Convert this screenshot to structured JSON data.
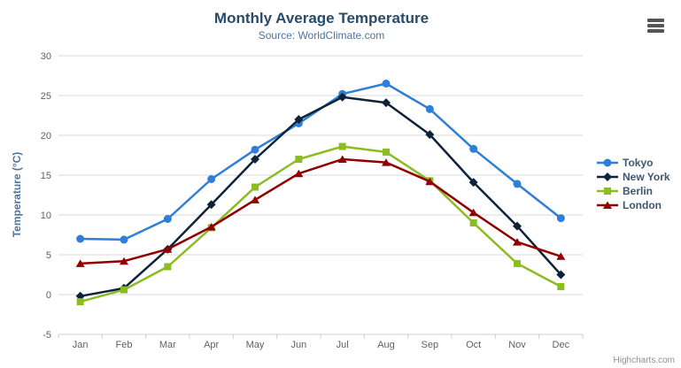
{
  "chart_data": {
    "type": "line",
    "title": "Monthly Average Temperature",
    "subtitle": "Source: WorldClimate.com",
    "xlabel": "",
    "ylabel": "Temperature (°C)",
    "ylim": [
      -5,
      30
    ],
    "yticks": [
      30,
      25,
      20,
      15,
      10,
      5,
      0,
      -5
    ],
    "grid": true,
    "legend_position": "right",
    "categories": [
      "Jan",
      "Feb",
      "Mar",
      "Apr",
      "May",
      "Jun",
      "Jul",
      "Aug",
      "Sep",
      "Oct",
      "Nov",
      "Dec"
    ],
    "series": [
      {
        "name": "Tokyo",
        "color": "#2f7ed8",
        "marker": "circle",
        "values": [
          7.0,
          6.9,
          9.5,
          14.5,
          18.2,
          21.5,
          25.2,
          26.5,
          23.3,
          18.3,
          13.9,
          9.6
        ]
      },
      {
        "name": "New York",
        "color": "#0d233a",
        "marker": "diamond",
        "values": [
          -0.2,
          0.8,
          5.7,
          11.3,
          17.0,
          22.0,
          24.8,
          24.1,
          20.1,
          14.1,
          8.6,
          2.5
        ]
      },
      {
        "name": "Berlin",
        "color": "#8bbc21",
        "marker": "square",
        "values": [
          -0.9,
          0.6,
          3.5,
          8.4,
          13.5,
          17.0,
          18.6,
          17.9,
          14.3,
          9.0,
          3.9,
          1.0
        ]
      },
      {
        "name": "London",
        "color": "#910000",
        "marker": "triangle",
        "values": [
          3.9,
          4.2,
          5.7,
          8.5,
          11.9,
          15.2,
          17.0,
          16.6,
          14.2,
          10.3,
          6.6,
          4.8
        ]
      }
    ],
    "credits": "Highcharts.com"
  },
  "context_menu_icon": "hamburger-icon",
  "colors": {
    "background": "#ffffff",
    "title": "#274b6d",
    "subtitle": "#4d759e",
    "axis_title": "#4d759e",
    "tick_label": "#606060",
    "gridline": "#d8d8d8",
    "axis_line": "#c0d0e0",
    "legend_text": "#3e576f",
    "credits": "#909090",
    "menu_icon": "#555555"
  }
}
